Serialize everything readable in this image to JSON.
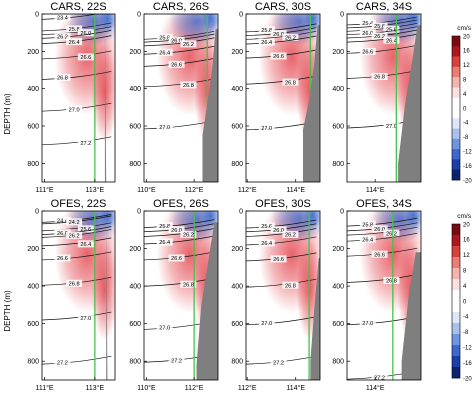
{
  "figure": {
    "ylabel": "DEPTH (m)",
    "colorbar_unit": "cm/s",
    "colorbar_ticks": [
      "20",
      "16",
      "12",
      "8",
      "4",
      "0",
      "-4",
      "-8",
      "-12",
      "-16",
      "-20"
    ],
    "colors": {
      "positive": "#e0303a",
      "negative": "#2b5fc9",
      "topography": "#7f7f7f",
      "section_line": "#46c24a",
      "contour": "#111111"
    }
  },
  "chart_data": [
    {
      "type": "heatmap",
      "title": "CARS, 22S",
      "xticks": [
        "111°E",
        "113°E"
      ],
      "xrange": [
        110.9,
        113.8
      ],
      "yticks": [
        "0",
        "200",
        "400",
        "600",
        "800"
      ],
      "ylim": [
        0,
        900
      ],
      "section_lon": 113.0,
      "isopycnals": [
        {
          "label": "23.4",
          "depth": 18
        },
        {
          "label": "25.8",
          "depth": 80
        },
        {
          "label": "26.0",
          "depth": 100
        },
        {
          "label": "26.2",
          "depth": 120
        },
        {
          "label": "26.4",
          "depth": 148
        },
        {
          "label": "26.6",
          "depth": 230
        },
        {
          "label": "26.8",
          "depth": 340
        },
        {
          "label": "27.0",
          "depth": 510
        },
        {
          "label": "27.2",
          "depth": 690
        }
      ],
      "topography": [
        {
          "lon": 113.4,
          "depth": 40
        },
        {
          "lon": 113.45,
          "depth": 900
        }
      ]
    },
    {
      "type": "heatmap",
      "title": "CARS, 26S",
      "xticks": [
        "110°E",
        "112°E"
      ],
      "xrange": [
        109.9,
        113.0
      ],
      "yticks": [
        "0",
        "200",
        "400",
        "600",
        "800"
      ],
      "ylim": [
        0,
        900
      ],
      "section_lon": 112.55,
      "isopycnals": [
        {
          "label": "25.8",
          "depth": 125
        },
        {
          "label": "26.0",
          "depth": 140
        },
        {
          "label": "26.2",
          "depth": 160
        },
        {
          "label": "26.4",
          "depth": 205
        },
        {
          "label": "26.6",
          "depth": 270
        },
        {
          "label": "26.8",
          "depth": 380
        },
        {
          "label": "27.0",
          "depth": 605
        }
      ],
      "topography": [
        {
          "lon": 112.35,
          "depth": 650
        },
        {
          "lon": 112.55,
          "depth": 480
        },
        {
          "lon": 112.75,
          "depth": 300
        },
        {
          "lon": 112.9,
          "depth": 80
        }
      ]
    },
    {
      "type": "heatmap",
      "title": "CARS, 30S",
      "xticks": [
        "112°E",
        "114°E"
      ],
      "xrange": [
        111.95,
        115.0
      ],
      "yticks": [
        "0",
        "200",
        "400",
        "600",
        "800"
      ],
      "ylim": [
        0,
        900
      ],
      "section_lon": 114.6,
      "isopycnals": [
        {
          "label": "25.8",
          "depth": 85
        },
        {
          "label": "26.0",
          "depth": 105
        },
        {
          "label": "26.2",
          "depth": 125
        },
        {
          "label": "26.4",
          "depth": 150
        },
        {
          "label": "26.6",
          "depth": 225
        },
        {
          "label": "26.8",
          "depth": 365
        },
        {
          "label": "27.0",
          "depth": 610
        }
      ],
      "topography": [
        {
          "lon": 114.3,
          "depth": 620
        },
        {
          "lon": 114.55,
          "depth": 460
        },
        {
          "lon": 114.75,
          "depth": 280
        },
        {
          "lon": 114.9,
          "depth": 60
        }
      ]
    },
    {
      "type": "heatmap",
      "title": "CARS, 34S",
      "xticks": [
        "114°E"
      ],
      "xrange": [
        113.2,
        115.3
      ],
      "yticks": [
        "0",
        "200",
        "400",
        "600",
        "800"
      ],
      "ylim": [
        0,
        900
      ],
      "section_lon": 114.6,
      "isopycnals": [
        {
          "label": "25.4",
          "depth": 48
        },
        {
          "label": "25.6",
          "depth": 64
        },
        {
          "label": "25.8",
          "depth": 82
        },
        {
          "label": "26.0",
          "depth": 100
        },
        {
          "label": "26.2",
          "depth": 118
        },
        {
          "label": "26.4",
          "depth": 140
        },
        {
          "label": "26.6",
          "depth": 200
        },
        {
          "label": "26.8",
          "depth": 335
        },
        {
          "label": "27.0",
          "depth": 600
        }
      ],
      "topography": [
        {
          "lon": 114.65,
          "depth": 800
        },
        {
          "lon": 114.85,
          "depth": 480
        },
        {
          "lon": 115.05,
          "depth": 250
        },
        {
          "lon": 115.2,
          "depth": 60
        }
      ]
    },
    {
      "type": "heatmap",
      "title": "OFES, 22S",
      "xticks": [
        "111°E",
        "113°E"
      ],
      "xrange": [
        110.9,
        113.8
      ],
      "yticks": [
        "0",
        "200",
        "400",
        "600",
        "800"
      ],
      "ylim": [
        0,
        900
      ],
      "section_lon": 113.0,
      "isopycnals": [
        {
          "label": "24.4",
          "depth": 50
        },
        {
          "label": "24.2",
          "depth": 58
        },
        {
          "label": "25.6",
          "depth": 95
        },
        {
          "label": "26.0",
          "depth": 115
        },
        {
          "label": "26.2",
          "depth": 130
        },
        {
          "label": "26.4",
          "depth": 175
        },
        {
          "label": "26.6",
          "depth": 250
        },
        {
          "label": "26.8",
          "depth": 385
        },
        {
          "label": "27.0",
          "depth": 570
        },
        {
          "label": "27.2",
          "depth": 805
        }
      ],
      "topography": [
        {
          "lon": 113.45,
          "depth": 40
        },
        {
          "lon": 113.5,
          "depth": 900
        }
      ]
    },
    {
      "type": "heatmap",
      "title": "OFES, 26S",
      "xticks": [
        "110°E",
        "112°E"
      ],
      "xrange": [
        109.9,
        113.0
      ],
      "yticks": [
        "0",
        "200",
        "400",
        "600",
        "800"
      ],
      "ylim": [
        0,
        900
      ],
      "section_lon": 112.0,
      "isopycnals": [
        {
          "label": "25.8",
          "depth": 78
        },
        {
          "label": "26.0",
          "depth": 100
        },
        {
          "label": "26.2",
          "depth": 125
        },
        {
          "label": "26.4",
          "depth": 165
        },
        {
          "label": "26.6",
          "depth": 250
        },
        {
          "label": "26.8",
          "depth": 390
        },
        {
          "label": "27.0",
          "depth": 620
        },
        {
          "label": "27.2",
          "depth": 795
        }
      ],
      "topography": [
        {
          "lon": 112.1,
          "depth": 820
        },
        {
          "lon": 112.3,
          "depth": 500
        },
        {
          "lon": 112.55,
          "depth": 300
        },
        {
          "lon": 112.85,
          "depth": 60
        }
      ]
    },
    {
      "type": "heatmap",
      "title": "OFES, 30S",
      "xticks": [
        "112°E",
        "114°E"
      ],
      "xrange": [
        111.95,
        115.0
      ],
      "yticks": [
        "0",
        "200",
        "400",
        "600",
        "800"
      ],
      "ylim": [
        0,
        900
      ],
      "section_lon": 114.55,
      "isopycnals": [
        {
          "label": "25.6",
          "depth": 80
        },
        {
          "label": "26.0",
          "depth": 100
        },
        {
          "label": "26.2",
          "depth": 125
        },
        {
          "label": "26.4",
          "depth": 170
        },
        {
          "label": "26.6",
          "depth": 255
        },
        {
          "label": "26.8",
          "depth": 395
        },
        {
          "label": "27.0",
          "depth": 595
        },
        {
          "label": "27.2",
          "depth": 805
        }
      ],
      "topography": [
        {
          "lon": 114.6,
          "depth": 800
        },
        {
          "lon": 114.8,
          "depth": 460
        },
        {
          "lon": 114.95,
          "depth": 250
        }
      ]
    },
    {
      "type": "heatmap",
      "title": "OFES, 34S",
      "xticks": [
        "114°E"
      ],
      "xrange": [
        113.2,
        115.3
      ],
      "yticks": [
        "0",
        "200",
        "400",
        "600",
        "800"
      ],
      "ylim": [
        0,
        900
      ],
      "section_lon": 114.5,
      "isopycnals": [
        {
          "label": "25.8",
          "depth": 70
        },
        {
          "label": "26.0",
          "depth": 95
        },
        {
          "label": "26.2",
          "depth": 118
        },
        {
          "label": "26.4",
          "depth": 150
        },
        {
          "label": "26.6",
          "depth": 230
        },
        {
          "label": "26.8",
          "depth": 370
        },
        {
          "label": "27.0",
          "depth": 595
        },
        {
          "label": "27.2",
          "depth": 885
        }
      ],
      "topography": [
        {
          "lon": 114.75,
          "depth": 800
        },
        {
          "lon": 114.95,
          "depth": 450
        },
        {
          "lon": 115.15,
          "depth": 220
        }
      ]
    }
  ]
}
